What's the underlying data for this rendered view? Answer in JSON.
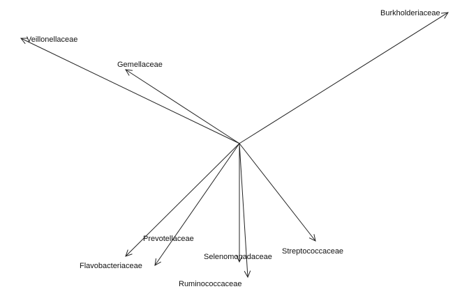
{
  "diagram": {
    "type": "biplot-vectors",
    "line_color": "#222222",
    "vectors": [
      {
        "label": "Burkholderiaceae"
      },
      {
        "label": "Veillonellaceae"
      },
      {
        "label": "Gemellaceae"
      },
      {
        "label": "Prevotellaceae"
      },
      {
        "label": "Flavobacteriaceae"
      },
      {
        "label": "Selenomonadaceae"
      },
      {
        "label": "Ruminococcaceae"
      },
      {
        "label": "Streptococcaceae"
      }
    ]
  }
}
